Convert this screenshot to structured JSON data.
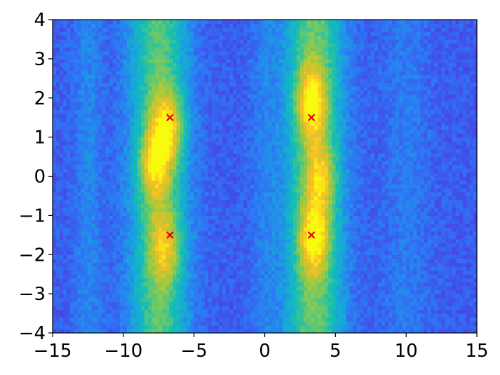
{
  "chart_data": {
    "type": "heatmap",
    "title": "",
    "xlabel": "",
    "ylabel": "",
    "xlim": [
      -15,
      15
    ],
    "ylim": [
      -4,
      4
    ],
    "x_ticks": [
      -15,
      -10,
      -5,
      0,
      5,
      10,
      15
    ],
    "y_ticks": [
      -4,
      -3,
      -2,
      -1,
      0,
      1,
      2,
      3,
      4
    ],
    "x_tick_labels": [
      "−15",
      "−10",
      "−5",
      "0",
      "5",
      "10",
      "15"
    ],
    "y_tick_labels": [
      "−4",
      "−3",
      "−2",
      "−1",
      "0",
      "1",
      "2",
      "3",
      "4"
    ],
    "colormap": "parula",
    "grid": false,
    "bands": [
      {
        "x_center": -7.5,
        "width": 2.0,
        "peak_intensity": 0.8
      },
      {
        "x_center": 3.5,
        "width": 2.0,
        "peak_intensity": 0.85
      },
      {
        "x_center": -12.5,
        "width": 1.0,
        "peak_intensity": 0.2
      },
      {
        "x_center": 0.0,
        "width": 1.0,
        "peak_intensity": 0.15
      },
      {
        "x_center": 10.0,
        "width": 1.5,
        "peak_intensity": 0.15
      }
    ],
    "hotspots": [
      {
        "x": -6.8,
        "y": 1.3,
        "intensity": 0.95
      },
      {
        "x": -7.8,
        "y": 0.3,
        "intensity": 0.85
      },
      {
        "x": -7.0,
        "y": -1.8,
        "intensity": 0.75
      },
      {
        "x": 3.3,
        "y": 1.9,
        "intensity": 1.0
      },
      {
        "x": 3.5,
        "y": -1.6,
        "intensity": 0.95
      },
      {
        "x": 4.0,
        "y": 0.0,
        "intensity": 0.7
      }
    ],
    "markers": [
      {
        "x": -6.7,
        "y": 1.5
      },
      {
        "x": 3.3,
        "y": 1.5
      },
      {
        "x": -6.7,
        "y": -1.5
      },
      {
        "x": 3.3,
        "y": -1.5
      }
    ],
    "marker_color": "#e8000b"
  }
}
